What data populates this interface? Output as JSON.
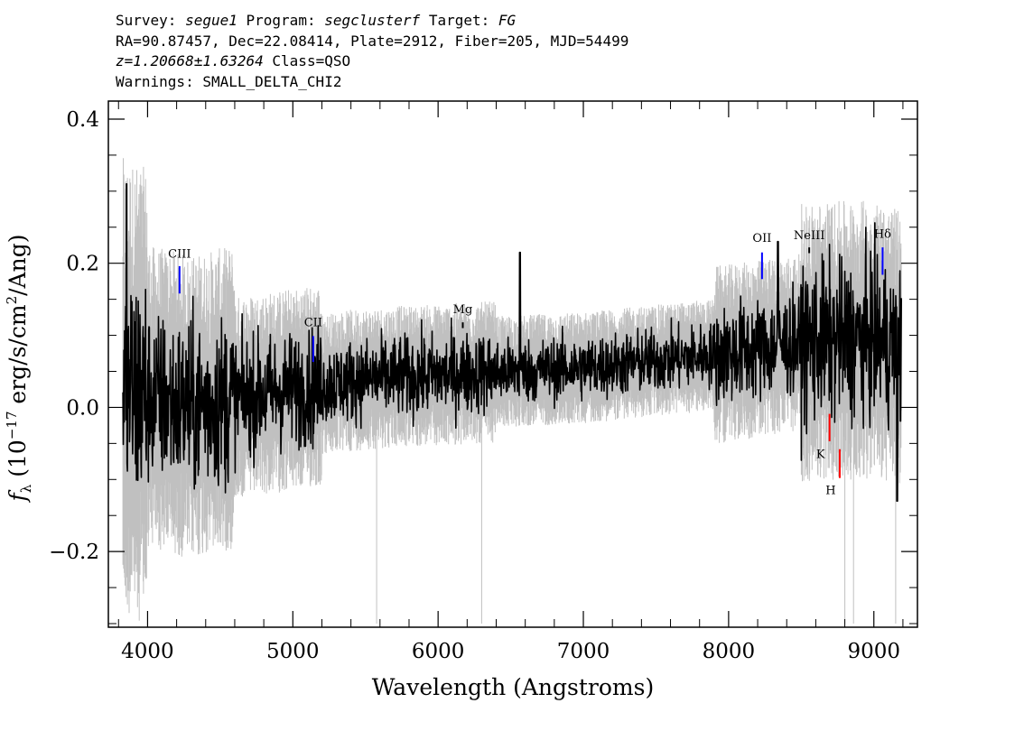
{
  "header": {
    "survey_label": "Survey:",
    "survey": "segue1",
    "program_label": "Program:",
    "program": "segclusterf",
    "target_label": "Target:",
    "target": "FG",
    "line2": "RA=90.87457, Dec=22.08414, Plate=2912, Fiber=205, MJD=54499",
    "z_text": "z=1.20668±1.63264",
    "class_text": "Class=QSO",
    "warnings": "Warnings: SMALL_DELTA_CHI2"
  },
  "chart_data": {
    "type": "line",
    "xlabel": "Wavelength (Angstroms)",
    "ylabel_html": "f_λ (10^-17 erg/s/cm^2/Ang)",
    "ylabel_parts": {
      "f": "f",
      "sub": "λ",
      "pre": " (10",
      "exp1": "−17",
      "mid": " erg/s/cm",
      "exp2": "2",
      "post": "/Ang)"
    },
    "xlim": [
      3730,
      9300
    ],
    "ylim": [
      -0.305,
      0.425
    ],
    "xticks": [
      4000,
      5000,
      6000,
      7000,
      8000,
      9000
    ],
    "xtick_labels": [
      "4000",
      "5000",
      "6000",
      "7000",
      "8000",
      "9000"
    ],
    "yticks": [
      -0.2,
      0.0,
      0.2,
      0.4
    ],
    "ytick_labels": [
      "−0.2",
      "0.0",
      "0.2",
      "0.4"
    ],
    "grid": false,
    "colors": {
      "flux": "#000000",
      "noise": "#c0c0c0",
      "emission": "#0000ff",
      "absorption": "#ff0000"
    },
    "spectrum_x_range": [
      3830,
      9190
    ],
    "continuum_knots": [
      [
        3830,
        0.03
      ],
      [
        4000,
        0.015
      ],
      [
        4300,
        0.0
      ],
      [
        4500,
        0.01
      ],
      [
        5000,
        0.025
      ],
      [
        5500,
        0.04
      ],
      [
        6000,
        0.045
      ],
      [
        6500,
        0.05
      ],
      [
        7000,
        0.055
      ],
      [
        7500,
        0.065
      ],
      [
        8000,
        0.075
      ],
      [
        8500,
        0.09
      ],
      [
        9000,
        0.095
      ],
      [
        9190,
        0.08
      ]
    ],
    "series": [
      {
        "name": "",
        "role": "flux",
        "color": "#000000"
      },
      {
        "name": "",
        "role": "error",
        "color": "#c0c0c0"
      }
    ],
    "line_markers": [
      {
        "label": "CIII",
        "x": 4220,
        "y_bottom": 0.158,
        "y_top": 0.196,
        "color": "#0000ff",
        "label_y": 0.2
      },
      {
        "label": "CII",
        "x": 5140,
        "y_bottom": 0.063,
        "y_top": 0.099,
        "color": "#0000ff",
        "label_y": 0.105
      },
      {
        "label": "Mg",
        "x": 6170,
        "y_bottom": 0.11,
        "y_top": 0.118,
        "color": "#000000",
        "label_y": 0.123
      },
      {
        "label": "OII",
        "x": 8230,
        "y_bottom": 0.178,
        "y_top": 0.215,
        "color": "#0000ff",
        "label_y": 0.222
      },
      {
        "label": "NeIII",
        "x": 8555,
        "y_bottom": 0.214,
        "y_top": 0.222,
        "color": "#000000",
        "label_y": 0.226
      },
      {
        "label": "Hδ",
        "x": 9060,
        "y_bottom": 0.184,
        "y_top": 0.222,
        "color": "#0000ff",
        "label_y": 0.228
      },
      {
        "label": "K",
        "x": 8695,
        "y_bottom": -0.047,
        "y_top": -0.009,
        "color": "#ff0000",
        "label_y": -0.065
      },
      {
        "label": "H",
        "x": 8765,
        "y_bottom": -0.098,
        "y_top": -0.058,
        "color": "#ff0000",
        "label_y": -0.115
      }
    ]
  }
}
